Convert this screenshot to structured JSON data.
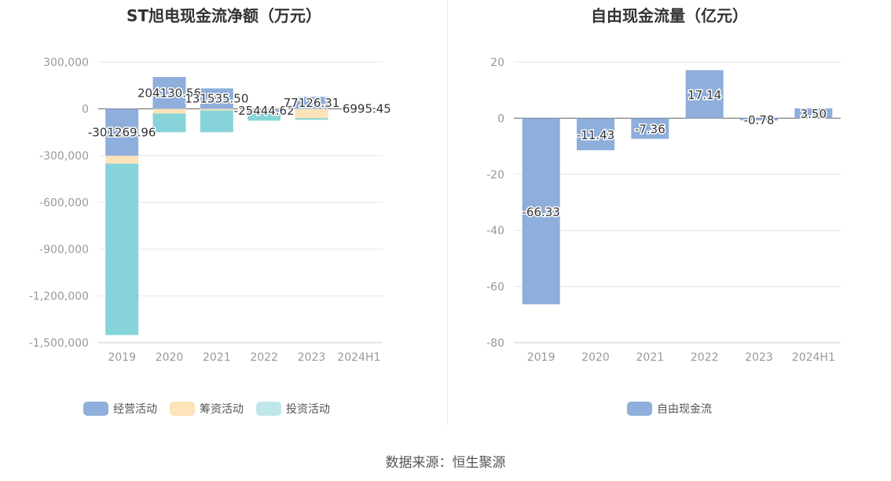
{
  "source_label": "数据来源：恒生聚源",
  "chart_data": [
    {
      "type": "bar",
      "stacked": true,
      "title": "ST旭电现金流净额（万元）",
      "categories": [
        "2019",
        "2020",
        "2021",
        "2022",
        "2023",
        "2024H1"
      ],
      "ylim": [
        -1500000,
        300000
      ],
      "yticks": [
        300000,
        0,
        -300000,
        -600000,
        -900000,
        -1200000,
        -1500000
      ],
      "ytick_labels": [
        "300,000",
        "0",
        "-300,000",
        "-600,000",
        "-900,000",
        "-1,200,000",
        "-1,500,000"
      ],
      "grid": true,
      "legend_position": "bottom",
      "series": [
        {
          "name": "经营活动",
          "color": "#8eaedb",
          "values": [
            -301269.96,
            204130.56,
            131535.5,
            -25444.62,
            77126.31,
            6995.45
          ]
        },
        {
          "name": "筹资活动",
          "color": "#fde3b9",
          "values": [
            -50000,
            -30000,
            -10000,
            10000,
            -60000,
            0
          ]
        },
        {
          "name": "投资活动",
          "color": "#bfe7eb",
          "stack_color": "#86d4d9",
          "values": [
            -1100000,
            -120000,
            -140000,
            -50000,
            -10000,
            0
          ]
        }
      ],
      "data_labels": [
        "-301269.96",
        "204130.56",
        "131535.50",
        "-25444.62",
        "77126.31",
        "6995.45"
      ]
    },
    {
      "type": "bar",
      "title": "自由现金流量（亿元）",
      "categories": [
        "2019",
        "2020",
        "2021",
        "2022",
        "2023",
        "2024H1"
      ],
      "ylim": [
        -80,
        20
      ],
      "yticks": [
        20,
        0,
        -20,
        -40,
        -60,
        -80
      ],
      "ytick_labels": [
        "20",
        "0",
        "-20",
        "-40",
        "-60",
        "-80"
      ],
      "grid": true,
      "legend_position": "bottom",
      "series": [
        {
          "name": "自由现金流",
          "color": "#8eaedb",
          "values": [
            -66.33,
            -11.43,
            -7.36,
            17.14,
            -0.78,
            3.5
          ]
        }
      ],
      "data_labels": [
        "-66.33",
        "-11.43",
        "-7.36",
        "17.14",
        "-0.78",
        "3.50"
      ]
    }
  ]
}
